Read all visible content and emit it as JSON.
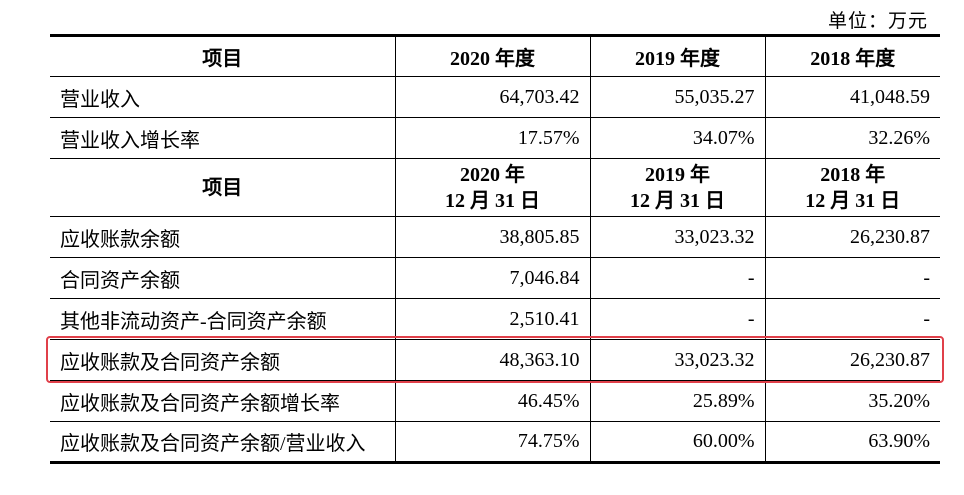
{
  "unit_label": "单位：万元",
  "table": {
    "header1": [
      "项目",
      "2020 年度",
      "2019 年度",
      "2018 年度"
    ],
    "rows1": [
      {
        "label": "营业收入",
        "values": [
          "64,703.42",
          "55,035.27",
          "41,048.59"
        ]
      },
      {
        "label": "营业收入增长率",
        "values": [
          "17.57%",
          "34.07%",
          "32.26%"
        ]
      }
    ],
    "header2": {
      "label": "项目",
      "cols": [
        {
          "line1": "2020 年",
          "line2": "12 月 31 日"
        },
        {
          "line1": "2019 年",
          "line2": "12 月 31 日"
        },
        {
          "line1": "2018 年",
          "line2": "12 月 31 日"
        }
      ]
    },
    "rows2": [
      {
        "label": "应收账款余额",
        "values": [
          "38,805.85",
          "33,023.32",
          "26,230.87"
        ]
      },
      {
        "label": "合同资产余额",
        "values": [
          "7,046.84",
          "-",
          "-"
        ]
      },
      {
        "label": "其他非流动资产-合同资产余额",
        "values": [
          "2,510.41",
          "-",
          "-"
        ]
      },
      {
        "label": "应收账款及合同资产余额",
        "values": [
          "48,363.10",
          "33,023.32",
          "26,230.87"
        ],
        "highlighted": true
      },
      {
        "label": "应收账款及合同资产余额增长率",
        "values": [
          "46.45%",
          "25.89%",
          "35.20%"
        ]
      },
      {
        "label": "应收账款及合同资产余额/营业收入",
        "values": [
          "74.75%",
          "60.00%",
          "63.90%"
        ]
      }
    ]
  },
  "highlight_color": "#e0404a"
}
